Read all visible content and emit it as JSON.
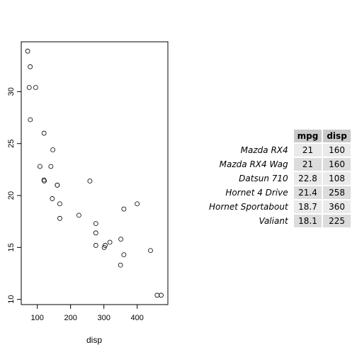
{
  "chart_data": [
    {
      "type": "scatter",
      "title": "",
      "xlabel": "disp",
      "ylabel": "",
      "xlim": [
        51.8,
        492.2
      ],
      "ylim": [
        9.5,
        34.8
      ],
      "grid": false,
      "x_ticks": [
        "100",
        "200",
        "300",
        "400"
      ],
      "y_ticks": [
        "10",
        "15",
        "20",
        "25",
        "30"
      ],
      "x": [
        160,
        160,
        108,
        258,
        360,
        225,
        360,
        146.7,
        140.8,
        167.6,
        167.6,
        275.8,
        275.8,
        275.8,
        472,
        460,
        440,
        78.7,
        75.7,
        71.1,
        120.1,
        318,
        304,
        350,
        400,
        79,
        120.3,
        95.1,
        351,
        145,
        301,
        121
      ],
      "y": [
        21,
        21,
        22.8,
        21.4,
        18.7,
        18.1,
        14.3,
        24.4,
        22.8,
        19.2,
        17.8,
        16.4,
        17.3,
        15.2,
        10.4,
        10.4,
        14.7,
        32.4,
        30.4,
        33.9,
        21.5,
        15.5,
        15.2,
        13.3,
        19.2,
        27.3,
        26,
        30.4,
        15.8,
        19.7,
        15,
        21.4
      ]
    },
    {
      "type": "table",
      "columns": [
        "mpg",
        "disp"
      ],
      "rows": [
        {
          "name": "Mazda RX4",
          "mpg": "21",
          "disp": "160"
        },
        {
          "name": "Mazda RX4 Wag",
          "mpg": "21",
          "disp": "160"
        },
        {
          "name": "Datsun 710",
          "mpg": "22.8",
          "disp": "108"
        },
        {
          "name": "Hornet 4 Drive",
          "mpg": "21.4",
          "disp": "258"
        },
        {
          "name": "Hornet Sportabout",
          "mpg": "18.7",
          "disp": "360"
        },
        {
          "name": "Valiant",
          "mpg": "18.1",
          "disp": "225"
        }
      ]
    }
  ]
}
